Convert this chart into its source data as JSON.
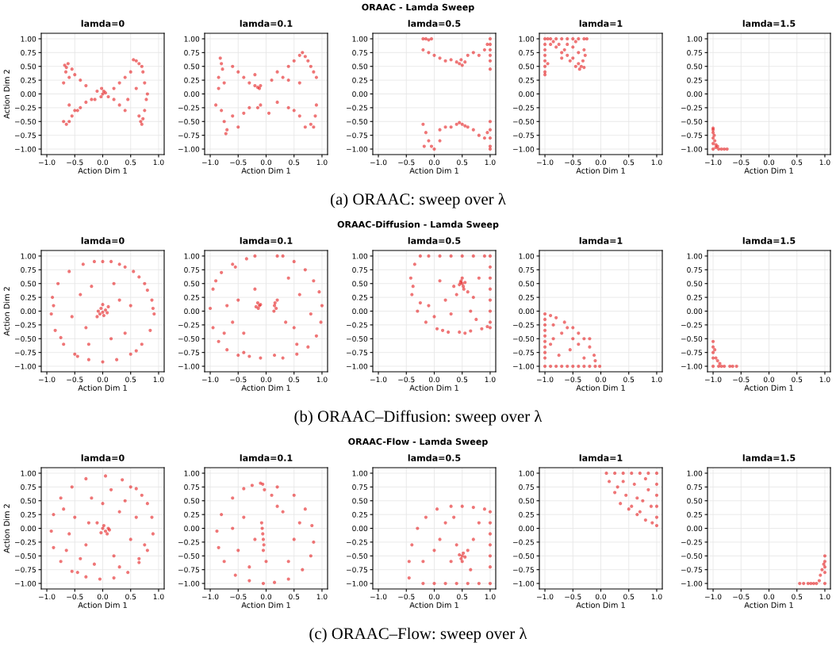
{
  "chart_data": [
    {
      "type": "scatter",
      "title": "lamda=0",
      "xlabel": "Action Dim 1",
      "ylabel": "Action Dim 2",
      "annotations": [
        "ORAAC - Lamda Sweep",
        "(a) ORAAC: sweep over λ"
      ],
      "color": "#e41a1c",
      "marker": "circle",
      "grid": true,
      "xlim": [
        -1.1,
        1.1
      ],
      "ylim": [
        -1.1,
        1.1
      ],
      "xticks": [
        {
          "value": -1,
          "label": "−1.0"
        },
        {
          "value": -0.5,
          "label": "−0.5"
        },
        {
          "value": 0,
          "label": "0.0"
        },
        {
          "value": 0.5,
          "label": "0.5"
        },
        {
          "value": 1,
          "label": "1.0"
        }
      ],
      "yticks": [
        {
          "value": -1,
          "label": "−1.00"
        },
        {
          "value": -0.75,
          "label": "−0.75"
        },
        {
          "value": -0.5,
          "label": "−0.50"
        },
        {
          "value": -0.25,
          "label": "−0.25"
        },
        {
          "value": 0,
          "label": "0.00"
        },
        {
          "value": 0.25,
          "label": "0.25"
        },
        {
          "value": 0.5,
          "label": "0.50"
        },
        {
          "value": 0.75,
          "label": "0.75"
        },
        {
          "value": 1,
          "label": "1.00"
        }
      ],
      "x": [
        -0.68,
        -0.65,
        -0.62,
        -0.66,
        -0.6,
        -0.7,
        -0.55,
        -0.5,
        -0.4,
        -0.3,
        -0.6,
        -0.5,
        -0.4,
        -0.3,
        -0.14,
        -0.7,
        -0.65,
        -0.6,
        -0.55,
        -0.45,
        -0.2,
        0.0,
        0.02,
        -0.03,
        0.05,
        -0.02,
        0.2,
        0.3,
        0.4,
        0.5,
        0.55,
        0.6,
        0.65,
        0.7,
        0.72,
        0.2,
        0.3,
        0.4,
        0.68,
        0.7,
        0.72,
        0.75,
        0.78,
        0.6,
        0.45,
        0.75,
        0.8,
        0.1,
        -0.1,
        0.65
      ],
      "values": [
        0.52,
        0.48,
        0.55,
        0.4,
        0.3,
        0.2,
        0.45,
        0.35,
        0.25,
        0.15,
        -0.2,
        -0.3,
        -0.25,
        -0.15,
        -0.1,
        -0.5,
        -0.55,
        -0.5,
        -0.4,
        -0.3,
        -0.1,
        0.0,
        0.05,
        -0.05,
        0.02,
        0.1,
        0.1,
        0.2,
        0.3,
        0.4,
        0.62,
        0.6,
        0.55,
        0.5,
        0.4,
        -0.1,
        -0.2,
        -0.3,
        -0.5,
        -0.55,
        -0.45,
        -0.3,
        -0.1,
        0.1,
        -0.1,
        0.2,
        0.0,
        -0.05,
        0.05,
        -0.4
      ]
    },
    {
      "type": "scatter",
      "title": "lamda=0.1",
      "xlabel": "Action Dim 1",
      "color": "#e41a1c",
      "marker": "circle",
      "grid": true,
      "xlim": [
        -1.1,
        1.1
      ],
      "ylim": [
        -1.1,
        1.1
      ],
      "xticks": [
        {
          "value": -1,
          "label": "−1.0"
        },
        {
          "value": -0.5,
          "label": "−0.5"
        },
        {
          "value": 0,
          "label": "0.0"
        },
        {
          "value": 0.5,
          "label": "0.5"
        },
        {
          "value": 1,
          "label": "1.0"
        }
      ],
      "yticks": [
        {
          "value": -1,
          "label": "−1.00"
        },
        {
          "value": -0.75,
          "label": "−0.75"
        },
        {
          "value": -0.5,
          "label": "−0.50"
        },
        {
          "value": -0.25,
          "label": "−0.25"
        },
        {
          "value": 0,
          "label": "0.00"
        },
        {
          "value": 0.25,
          "label": "0.25"
        },
        {
          "value": 0.5,
          "label": "0.50"
        },
        {
          "value": 0.75,
          "label": "0.75"
        },
        {
          "value": 1,
          "label": "1.00"
        }
      ],
      "x": [
        -0.82,
        -0.8,
        -0.78,
        -0.85,
        -0.75,
        -0.6,
        -0.5,
        -0.4,
        -0.3,
        -0.2,
        -0.15,
        -0.12,
        -0.1,
        0.1,
        0.2,
        0.4,
        0.5,
        0.6,
        0.65,
        0.7,
        0.8,
        0.85,
        0.9,
        0.6,
        0.4,
        -0.8,
        -0.75,
        -0.7,
        -0.72,
        -0.6,
        -0.4,
        -0.3,
        -0.15,
        -0.1,
        0.2,
        0.4,
        0.6,
        0.8,
        0.85,
        0.88,
        0.9,
        0.7,
        -0.5,
        -0.9,
        0.3,
        0.05,
        -0.2,
        0.75,
        -0.85,
        0.5
      ],
      "values": [
        0.65,
        0.55,
        0.45,
        0.3,
        0.2,
        0.5,
        0.4,
        0.3,
        0.2,
        0.15,
        0.12,
        0.1,
        0.15,
        0.25,
        0.4,
        0.5,
        0.6,
        0.7,
        0.75,
        0.68,
        0.5,
        0.4,
        0.3,
        0.2,
        0.25,
        -0.3,
        -0.5,
        -0.65,
        -0.72,
        -0.4,
        -0.35,
        -0.25,
        -0.25,
        -0.2,
        -0.15,
        -0.25,
        -0.4,
        -0.55,
        -0.6,
        -0.4,
        -0.2,
        -0.6,
        -0.6,
        -0.2,
        0.3,
        -0.35,
        0.35,
        0.6,
        0.1,
        -0.3
      ]
    },
    {
      "type": "scatter",
      "title": "lamda=0.5",
      "xlabel": "Action Dim 1",
      "color": "#e41a1c",
      "marker": "circle",
      "grid": true,
      "xlim": [
        -1.1,
        1.1
      ],
      "ylim": [
        -1.1,
        1.1
      ],
      "xticks": [
        {
          "value": -1,
          "label": "−1.0"
        },
        {
          "value": -0.5,
          "label": "−0.5"
        },
        {
          "value": 0,
          "label": "0.0"
        },
        {
          "value": 0.5,
          "label": "0.5"
        },
        {
          "value": 1,
          "label": "1.0"
        }
      ],
      "yticks": [
        {
          "value": -1,
          "label": "−1.00"
        },
        {
          "value": -0.75,
          "label": "−0.75"
        },
        {
          "value": -0.5,
          "label": "−0.50"
        },
        {
          "value": -0.25,
          "label": "−0.25"
        },
        {
          "value": 0,
          "label": "0.00"
        },
        {
          "value": 0.25,
          "label": "0.25"
        },
        {
          "value": 0.5,
          "label": "0.50"
        },
        {
          "value": 0.75,
          "label": "0.75"
        },
        {
          "value": 1,
          "label": "1.00"
        }
      ],
      "x": [
        -0.2,
        -0.15,
        -0.1,
        -0.05,
        -0.2,
        -0.1,
        0.0,
        0.1,
        0.2,
        0.3,
        0.4,
        0.45,
        0.5,
        0.55,
        0.48,
        0.6,
        0.7,
        0.8,
        0.9,
        0.95,
        1.0,
        1.0,
        1.0,
        1.0,
        1.0,
        1.0,
        1.0,
        1.0,
        1.0,
        1.0,
        1.0,
        -0.2,
        -0.15,
        -0.1,
        0.0,
        -0.05,
        0.1,
        0.2,
        0.3,
        0.4,
        0.45,
        0.5,
        0.55,
        0.6,
        0.7,
        0.8,
        0.9,
        0.95,
        0.1,
        -0.18
      ],
      "values": [
        1.0,
        1.0,
        0.98,
        1.0,
        0.8,
        0.75,
        0.7,
        0.65,
        0.6,
        0.62,
        0.58,
        0.55,
        0.52,
        0.58,
        0.62,
        0.7,
        0.75,
        0.7,
        0.8,
        0.9,
        1.0,
        0.9,
        0.8,
        0.7,
        0.6,
        0.45,
        -0.5,
        -0.65,
        -0.8,
        -0.95,
        -1.0,
        -0.55,
        -0.7,
        -0.85,
        -1.0,
        -0.95,
        -0.65,
        -0.6,
        -0.6,
        -0.55,
        -0.52,
        -0.55,
        -0.58,
        -0.6,
        -0.65,
        -0.75,
        -0.8,
        -0.7,
        -0.85,
        -0.95
      ]
    },
    {
      "type": "scatter",
      "title": "lamda=1",
      "xlabel": "Action Dim 1",
      "color": "#e41a1c",
      "marker": "circle",
      "grid": true,
      "xlim": [
        -1.1,
        1.1
      ],
      "ylim": [
        -1.1,
        1.1
      ],
      "xticks": [
        {
          "value": -1,
          "label": "−1.0"
        },
        {
          "value": -0.5,
          "label": "−0.5"
        },
        {
          "value": 0,
          "label": "0.0"
        },
        {
          "value": 0.5,
          "label": "0.5"
        },
        {
          "value": 1,
          "label": "1.0"
        }
      ],
      "yticks": [
        {
          "value": -1,
          "label": "−1.00"
        },
        {
          "value": -0.75,
          "label": "−0.75"
        },
        {
          "value": -0.5,
          "label": "−0.50"
        },
        {
          "value": -0.25,
          "label": "−0.25"
        },
        {
          "value": 0,
          "label": "0.00"
        },
        {
          "value": 0.25,
          "label": "0.25"
        },
        {
          "value": 0.5,
          "label": "0.50"
        },
        {
          "value": 0.75,
          "label": "0.75"
        },
        {
          "value": 1,
          "label": "1.00"
        }
      ],
      "x": [
        -1.0,
        -0.95,
        -0.9,
        -0.8,
        -0.7,
        -0.6,
        -0.5,
        -0.4,
        -0.3,
        -0.25,
        -1.0,
        -1.0,
        -1.0,
        -1.0,
        -1.0,
        -1.0,
        -1.0,
        -0.9,
        -0.8,
        -0.7,
        -0.6,
        -0.5,
        -0.4,
        -0.35,
        -0.3,
        -0.38,
        -0.32,
        -0.45,
        -0.55,
        -0.65,
        -0.75,
        -0.5,
        -0.3,
        -0.28,
        -0.85,
        -0.4,
        -0.6,
        -0.7,
        -0.95,
        -0.45
      ],
      "values": [
        1.0,
        1.0,
        1.0,
        1.0,
        1.0,
        1.0,
        1.0,
        1.0,
        1.0,
        1.0,
        0.9,
        0.8,
        0.7,
        0.6,
        0.5,
        0.4,
        0.35,
        0.9,
        0.85,
        0.75,
        0.7,
        0.65,
        0.55,
        0.5,
        0.48,
        0.45,
        0.6,
        0.5,
        0.6,
        0.8,
        0.9,
        0.85,
        0.8,
        0.7,
        0.95,
        0.75,
        0.9,
        0.65,
        0.55,
        0.95
      ]
    },
    {
      "type": "scatter",
      "title": "lamda=1.5",
      "xlabel": "Action Dim 1",
      "color": "#e41a1c",
      "marker": "circle",
      "grid": true,
      "xlim": [
        -1.1,
        1.1
      ],
      "ylim": [
        -1.1,
        1.1
      ],
      "xticks": [
        {
          "value": -1,
          "label": "−1.0"
        },
        {
          "value": -0.5,
          "label": "−0.5"
        },
        {
          "value": 0,
          "label": "0.0"
        },
        {
          "value": 0.5,
          "label": "0.5"
        },
        {
          "value": 1,
          "label": "1.0"
        }
      ],
      "yticks": [
        {
          "value": -1,
          "label": "−1.00"
        },
        {
          "value": -0.75,
          "label": "−0.75"
        },
        {
          "value": -0.5,
          "label": "−0.50"
        },
        {
          "value": -0.25,
          "label": "−0.25"
        },
        {
          "value": 0,
          "label": "0.00"
        },
        {
          "value": 0.25,
          "label": "0.25"
        },
        {
          "value": 0.5,
          "label": "0.50"
        },
        {
          "value": 0.75,
          "label": "0.75"
        },
        {
          "value": 1,
          "label": "1.00"
        }
      ],
      "x": [
        -1.0,
        -1.0,
        -1.0,
        -1.0,
        -1.0,
        -0.98,
        -0.97,
        -0.95,
        -0.9,
        -0.85,
        -0.8,
        -0.75,
        -0.95,
        -0.92,
        -1.0
      ],
      "values": [
        -0.62,
        -0.7,
        -0.8,
        -0.9,
        -1.0,
        -0.75,
        -0.85,
        -0.92,
        -1.0,
        -1.0,
        -1.0,
        -1.0,
        -0.97,
        -0.95,
        -0.65
      ]
    },
    {
      "type": "scatter",
      "title": "lamda=0",
      "xlabel": "Action Dim 1",
      "ylabel": "Action Dim 2",
      "annotations": [
        "ORAAC-Diffusion - Lamda Sweep",
        "(b) ORAAC–Diffusion: sweep over λ"
      ],
      "color": "#e41a1c",
      "marker": "circle",
      "grid": true,
      "xlim": [
        -1.1,
        1.1
      ],
      "ylim": [
        -1.1,
        1.1
      ],
      "xticks": [
        {
          "value": -1,
          "label": "−1.0"
        },
        {
          "value": -0.5,
          "label": "−0.5"
        },
        {
          "value": 0,
          "label": "0.0"
        },
        {
          "value": 0.5,
          "label": "0.5"
        },
        {
          "value": 1,
          "label": "1.0"
        }
      ],
      "yticks": [
        {
          "value": -1,
          "label": "−1.00"
        },
        {
          "value": -0.75,
          "label": "−0.75"
        },
        {
          "value": -0.5,
          "label": "−0.50"
        },
        {
          "value": -0.25,
          "label": "−0.25"
        },
        {
          "value": 0,
          "label": "0.00"
        },
        {
          "value": 0.25,
          "label": "0.25"
        },
        {
          "value": 0.5,
          "label": "0.50"
        },
        {
          "value": 0.75,
          "label": "0.75"
        },
        {
          "value": 1,
          "label": "1.00"
        }
      ],
      "x": [
        0.0,
        0.3,
        0.55,
        0.75,
        0.88,
        0.92,
        0.85,
        0.7,
        0.5,
        0.25,
        0.0,
        -0.25,
        -0.5,
        -0.7,
        -0.85,
        -0.92,
        -0.9,
        -0.8,
        -0.6,
        -0.35,
        -0.15,
        0.15,
        0.4,
        0.65,
        0.8,
        -0.75,
        -0.45,
        0.6,
        0.9,
        -0.88,
        0.0,
        0.05,
        -0.05,
        0.02,
        -0.03,
        0.08,
        -0.08,
        0.1,
        -0.1,
        0.0,
        0.3,
        -0.3,
        0.4,
        -0.4,
        0.2,
        -0.2,
        0.5,
        -0.55,
        0.15,
        -0.25
      ],
      "values": [
        0.9,
        0.85,
        0.72,
        0.5,
        0.2,
        -0.05,
        -0.35,
        -0.6,
        -0.78,
        -0.88,
        -0.92,
        -0.88,
        -0.78,
        -0.6,
        -0.35,
        -0.05,
        0.25,
        0.5,
        0.72,
        0.85,
        0.9,
        0.9,
        0.8,
        0.62,
        0.38,
        -0.48,
        -0.82,
        -0.72,
        0.05,
        0.1,
        -0.02,
        0.02,
        -0.05,
        -0.08,
        0.05,
        -0.03,
        0.0,
        0.08,
        -0.1,
        0.12,
        0.2,
        -0.3,
        -0.4,
        0.3,
        0.5,
        0.45,
        0.1,
        -0.1,
        -0.5,
        -0.6
      ]
    },
    {
      "type": "scatter",
      "title": "lamda=0.1",
      "xlabel": "Action Dim 1",
      "color": "#e41a1c",
      "marker": "circle",
      "grid": true,
      "xlim": [
        -1.1,
        1.1
      ],
      "ylim": [
        -1.1,
        1.1
      ],
      "xticks": [
        {
          "value": -1,
          "label": "−1.0"
        },
        {
          "value": -0.5,
          "label": "−0.5"
        },
        {
          "value": 0,
          "label": "0.0"
        },
        {
          "value": 0.5,
          "label": "0.5"
        },
        {
          "value": 1,
          "label": "1.0"
        }
      ],
      "yticks": [
        {
          "value": -1,
          "label": "−1.00"
        },
        {
          "value": -0.75,
          "label": "−0.75"
        },
        {
          "value": -0.5,
          "label": "−0.50"
        },
        {
          "value": -0.25,
          "label": "−0.25"
        },
        {
          "value": 0,
          "label": "0.00"
        },
        {
          "value": 0.25,
          "label": "0.25"
        },
        {
          "value": 0.5,
          "label": "0.50"
        },
        {
          "value": 0.75,
          "label": "0.75"
        },
        {
          "value": 1,
          "label": "1.00"
        }
      ],
      "x": [
        -0.95,
        -1.0,
        -0.95,
        -0.85,
        -0.7,
        -0.5,
        -0.3,
        -0.2,
        0.2,
        0.3,
        0.5,
        0.7,
        0.85,
        0.95,
        1.0,
        0.98,
        0.9,
        0.75,
        0.55,
        0.3,
        0.15,
        -0.1,
        -0.4,
        -0.6,
        -0.8,
        -0.9,
        -0.35,
        -0.55,
        0.55,
        -0.15,
        -0.12,
        -0.1,
        -0.18,
        -0.14,
        0.15,
        0.18,
        0.16,
        0.14,
        0.2,
        -0.5,
        -0.6,
        0.6,
        0.5,
        -0.4,
        0.4,
        -0.7,
        0.8,
        -0.2,
        0.35,
        -0.75
      ],
      "values": [
        0.4,
        0.05,
        -0.3,
        -0.55,
        -0.7,
        -0.8,
        -0.82,
        1.0,
        1.0,
        1.0,
        0.9,
        0.75,
        0.55,
        0.35,
        0.1,
        -0.2,
        -0.45,
        -0.65,
        -0.78,
        -0.85,
        -0.8,
        -0.85,
        -0.75,
        0.85,
        0.7,
        0.55,
        0.95,
        0.8,
        -0.6,
        0.15,
        0.1,
        0.12,
        0.08,
        0.05,
        0.1,
        0.05,
        0.15,
        0.0,
        0.2,
        0.2,
        -0.2,
        0.3,
        -0.3,
        -0.4,
        0.6,
        0.1,
        -0.05,
        0.4,
        -0.2,
        -0.4
      ]
    },
    {
      "type": "scatter",
      "title": "lamda=0.5",
      "xlabel": "Action Dim 1",
      "color": "#e41a1c",
      "marker": "circle",
      "grid": true,
      "xlim": [
        -1.1,
        1.1
      ],
      "ylim": [
        -1.1,
        1.1
      ],
      "xticks": [
        {
          "value": -1,
          "label": "−1.0"
        },
        {
          "value": -0.5,
          "label": "−0.5"
        },
        {
          "value": 0,
          "label": "0.0"
        },
        {
          "value": 0.5,
          "label": "0.5"
        },
        {
          "value": 1,
          "label": "1.0"
        }
      ],
      "yticks": [
        {
          "value": -1,
          "label": "−1.00"
        },
        {
          "value": -0.75,
          "label": "−0.75"
        },
        {
          "value": -0.5,
          "label": "−0.50"
        },
        {
          "value": -0.25,
          "label": "−0.25"
        },
        {
          "value": 0,
          "label": "0.00"
        },
        {
          "value": 0.25,
          "label": "0.25"
        },
        {
          "value": 0.5,
          "label": "0.50"
        },
        {
          "value": 0.75,
          "label": "0.75"
        },
        {
          "value": 1,
          "label": "1.00"
        }
      ],
      "x": [
        -0.25,
        -0.1,
        0.1,
        0.3,
        0.5,
        0.7,
        0.9,
        1.0,
        1.0,
        1.0,
        1.0,
        1.0,
        1.0,
        1.0,
        1.0,
        -0.35,
        -0.42,
        -0.4,
        -0.3,
        -0.15,
        0.05,
        0.25,
        0.45,
        0.65,
        0.85,
        0.95,
        -0.38,
        -0.25,
        0.15,
        0.55,
        0.5,
        0.48,
        0.52,
        0.55,
        0.45,
        0.5,
        0.53,
        0.47,
        0.6,
        0.4,
        0.2,
        0.7,
        0.3,
        0.8,
        0.1,
        0.65,
        -0.1,
        0.35,
        0.75,
        0.0
      ],
      "values": [
        1.0,
        1.0,
        1.0,
        1.0,
        1.0,
        1.0,
        1.0,
        1.0,
        0.8,
        0.6,
        0.4,
        0.2,
        0.0,
        -0.2,
        -0.3,
        0.85,
        0.6,
        0.3,
        0.0,
        -0.2,
        -0.32,
        -0.38,
        -0.38,
        -0.36,
        -0.32,
        -0.28,
        0.45,
        0.15,
        -0.35,
        -0.4,
        0.5,
        0.55,
        0.45,
        0.52,
        0.48,
        0.6,
        0.4,
        0.52,
        0.35,
        0.3,
        0.2,
        0.25,
        -0.05,
        0.6,
        0.55,
        0.0,
        0.1,
        0.45,
        -0.15,
        -0.1
      ]
    },
    {
      "type": "scatter",
      "title": "lamda=1",
      "xlabel": "Action Dim 1",
      "color": "#e41a1c",
      "marker": "circle",
      "grid": true,
      "xlim": [
        -1.1,
        1.1
      ],
      "ylim": [
        -1.1,
        1.1
      ],
      "xticks": [
        {
          "value": -1,
          "label": "−1.0"
        },
        {
          "value": -0.5,
          "label": "−0.5"
        },
        {
          "value": 0,
          "label": "0.0"
        },
        {
          "value": 0.5,
          "label": "0.5"
        },
        {
          "value": 1,
          "label": "1.0"
        }
      ],
      "yticks": [
        {
          "value": -1,
          "label": "−1.00"
        },
        {
          "value": -0.75,
          "label": "−0.75"
        },
        {
          "value": -0.5,
          "label": "−0.50"
        },
        {
          "value": -0.25,
          "label": "−0.25"
        },
        {
          "value": 0,
          "label": "0.00"
        },
        {
          "value": 0.25,
          "label": "0.25"
        },
        {
          "value": 0.5,
          "label": "0.50"
        },
        {
          "value": 0.75,
          "label": "0.75"
        },
        {
          "value": 1,
          "label": "1.00"
        }
      ],
      "x": [
        -1.0,
        -1.0,
        -1.0,
        -1.0,
        -1.0,
        -1.0,
        -1.0,
        -1.0,
        -1.0,
        -1.0,
        -0.9,
        -0.8,
        -0.7,
        -0.6,
        -0.5,
        -0.4,
        -0.3,
        -0.2,
        -0.1,
        -0.02,
        -0.9,
        -0.8,
        -0.65,
        -0.5,
        -0.4,
        -0.3,
        -0.2,
        -0.12,
        -0.1,
        -0.85,
        -0.7,
        -0.55,
        -0.75,
        -0.4,
        -0.6,
        -0.85,
        -0.3,
        -0.9,
        -0.5,
        -0.2
      ],
      "values": [
        -0.05,
        -0.15,
        -0.25,
        -0.35,
        -0.45,
        -0.55,
        -0.65,
        -0.75,
        -0.85,
        -1.0,
        -1.0,
        -1.0,
        -1.0,
        -1.0,
        -1.0,
        -1.0,
        -1.0,
        -1.0,
        -1.0,
        -1.0,
        -0.08,
        -0.12,
        -0.2,
        -0.3,
        -0.4,
        -0.5,
        -0.65,
        -0.8,
        -0.9,
        -0.5,
        -0.4,
        -0.7,
        -0.8,
        -0.6,
        -0.3,
        -0.25,
        -0.85,
        -0.6,
        -0.5,
        -0.5
      ]
    },
    {
      "type": "scatter",
      "title": "lamda=1.5",
      "xlabel": "Action Dim 1",
      "color": "#e41a1c",
      "marker": "circle",
      "grid": true,
      "xlim": [
        -1.1,
        1.1
      ],
      "ylim": [
        -1.1,
        1.1
      ],
      "xticks": [
        {
          "value": -1,
          "label": "−1.0"
        },
        {
          "value": -0.5,
          "label": "−0.5"
        },
        {
          "value": 0,
          "label": "0.0"
        },
        {
          "value": 0.5,
          "label": "0.5"
        },
        {
          "value": 1,
          "label": "1.0"
        }
      ],
      "yticks": [
        {
          "value": -1,
          "label": "−1.00"
        },
        {
          "value": -0.75,
          "label": "−0.75"
        },
        {
          "value": -0.5,
          "label": "−0.50"
        },
        {
          "value": -0.25,
          "label": "−0.25"
        },
        {
          "value": 0,
          "label": "0.00"
        },
        {
          "value": 0.25,
          "label": "0.25"
        },
        {
          "value": 0.5,
          "label": "0.50"
        },
        {
          "value": 0.75,
          "label": "0.75"
        },
        {
          "value": 1,
          "label": "1.00"
        }
      ],
      "x": [
        -1.0,
        -1.0,
        -1.0,
        -1.0,
        -1.0,
        -0.97,
        -0.95,
        -0.92,
        -0.88,
        -0.85,
        -0.8,
        -0.7,
        -0.65,
        -0.58,
        -0.9
      ],
      "values": [
        -0.55,
        -0.65,
        -0.75,
        -0.85,
        -1.0,
        -0.7,
        -0.85,
        -0.9,
        -0.95,
        -1.0,
        -1.0,
        -1.0,
        -1.0,
        -1.0,
        -1.0
      ]
    },
    {
      "type": "scatter",
      "title": "lamda=0",
      "xlabel": "Action Dim 1",
      "ylabel": "Action Dim 2",
      "annotations": [
        "ORAAC-Flow - Lamda Sweep",
        "(c) ORAAC–Flow: sweep over λ"
      ],
      "color": "#e41a1c",
      "marker": "circle",
      "grid": true,
      "xlim": [
        -1.1,
        1.1
      ],
      "ylim": [
        -1.1,
        1.1
      ],
      "xticks": [
        {
          "value": -1,
          "label": "−1.0"
        },
        {
          "value": -0.5,
          "label": "−0.5"
        },
        {
          "value": 0,
          "label": "0.0"
        },
        {
          "value": 0.5,
          "label": "0.5"
        },
        {
          "value": 1,
          "label": "1.0"
        }
      ],
      "yticks": [
        {
          "value": -1,
          "label": "−1.00"
        },
        {
          "value": -0.75,
          "label": "−0.75"
        },
        {
          "value": -0.5,
          "label": "−0.50"
        },
        {
          "value": -0.25,
          "label": "−0.25"
        },
        {
          "value": 0,
          "label": "0.00"
        },
        {
          "value": 0.25,
          "label": "0.25"
        },
        {
          "value": 0.5,
          "label": "0.50"
        },
        {
          "value": 0.75,
          "label": "0.75"
        },
        {
          "value": 1,
          "label": "1.00"
        }
      ],
      "x": [
        0.05,
        0.35,
        0.6,
        0.8,
        0.88,
        0.9,
        0.8,
        0.65,
        0.45,
        0.2,
        -0.05,
        -0.3,
        -0.55,
        -0.75,
        -0.88,
        -0.92,
        -0.88,
        -0.75,
        -0.55,
        -0.3,
        0.05,
        0.0,
        0.08,
        0.1,
        -0.03,
        0.02,
        0.12,
        -0.1,
        0.3,
        -0.3,
        0.5,
        -0.5,
        0.4,
        -0.4,
        0.6,
        -0.6,
        0.2,
        -0.2,
        0.65,
        -0.15,
        0.7,
        -0.7,
        0.5,
        0.3,
        -0.45,
        0.15,
        -0.65,
        0.75,
        0.0,
        -0.25
      ],
      "values": [
        0.95,
        0.88,
        0.72,
        0.45,
        0.2,
        -0.1,
        -0.4,
        -0.62,
        -0.8,
        -0.9,
        -0.92,
        -0.88,
        -0.78,
        -0.6,
        -0.35,
        -0.05,
        0.25,
        0.55,
        0.75,
        0.9,
        -0.05,
        0.0,
        -0.1,
        0.0,
        -0.08,
        0.05,
        -0.03,
        0.1,
        0.3,
        -0.3,
        -0.2,
        0.2,
        0.5,
        -0.55,
        0.2,
        -0.1,
        -0.5,
        0.55,
        -0.55,
        -0.65,
        0.6,
        0.35,
        0.75,
        -0.7,
        -0.8,
        0.7,
        -0.4,
        -0.3,
        0.45,
        0.1
      ]
    },
    {
      "type": "scatter",
      "title": "lamda=0.1",
      "xlabel": "Action Dim 1",
      "color": "#e41a1c",
      "marker": "circle",
      "grid": true,
      "xlim": [
        -1.1,
        1.1
      ],
      "ylim": [
        -1.1,
        1.1
      ],
      "xticks": [
        {
          "value": -1,
          "label": "−1.0"
        },
        {
          "value": -0.5,
          "label": "−0.5"
        },
        {
          "value": 0,
          "label": "0.0"
        },
        {
          "value": 0.5,
          "label": "0.5"
        },
        {
          "value": 1,
          "label": "1.0"
        }
      ],
      "yticks": [
        {
          "value": -1,
          "label": "−1.00"
        },
        {
          "value": -0.75,
          "label": "−0.75"
        },
        {
          "value": -0.5,
          "label": "−0.50"
        },
        {
          "value": -0.25,
          "label": "−0.25"
        },
        {
          "value": 0,
          "label": "0.00"
        },
        {
          "value": 0.25,
          "label": "0.25"
        },
        {
          "value": 0.5,
          "label": "0.50"
        },
        {
          "value": 0.75,
          "label": "0.75"
        },
        {
          "value": 1,
          "label": "1.00"
        }
      ],
      "x": [
        -0.1,
        0.2,
        0.5,
        0.7,
        0.82,
        0.85,
        0.8,
        0.65,
        0.4,
        0.15,
        -0.05,
        -0.3,
        -0.55,
        -0.75,
        -0.85,
        -0.88,
        -0.8,
        -0.6,
        -0.4,
        -0.25,
        -0.08,
        -0.07,
        -0.06,
        -0.05,
        -0.04,
        -0.05,
        -0.06,
        -0.03,
        0.3,
        -0.4,
        0.5,
        -0.5,
        0.4,
        -0.3,
        0.2,
        -0.2,
        0.6,
        -0.6,
        0.0,
        0.1
      ],
      "values": [
        0.82,
        0.75,
        0.6,
        0.35,
        0.05,
        -0.25,
        -0.5,
        -0.75,
        -0.92,
        -0.98,
        -1.0,
        -0.95,
        -0.85,
        -0.6,
        -0.35,
        -0.05,
        0.25,
        0.55,
        0.72,
        0.78,
        0.1,
        0.0,
        -0.1,
        -0.2,
        -0.3,
        -0.4,
        0.8,
        0.7,
        0.3,
        0.2,
        -0.2,
        -0.4,
        -0.6,
        -0.7,
        0.4,
        -0.2,
        0.1,
        0.0,
        -0.6,
        0.6
      ]
    },
    {
      "type": "scatter",
      "title": "lamda=0.5",
      "xlabel": "Action Dim 1",
      "color": "#e41a1c",
      "marker": "circle",
      "grid": true,
      "xlim": [
        -1.1,
        1.1
      ],
      "ylim": [
        -1.1,
        1.1
      ],
      "xticks": [
        {
          "value": -1,
          "label": "−1.0"
        },
        {
          "value": -0.5,
          "label": "−0.5"
        },
        {
          "value": 0,
          "label": "0.0"
        },
        {
          "value": 0.5,
          "label": "0.5"
        },
        {
          "value": 1,
          "label": "1.0"
        }
      ],
      "yticks": [
        {
          "value": -1,
          "label": "−1.00"
        },
        {
          "value": -0.75,
          "label": "−0.75"
        },
        {
          "value": -0.5,
          "label": "−0.50"
        },
        {
          "value": -0.25,
          "label": "−0.25"
        },
        {
          "value": 0,
          "label": "0.00"
        },
        {
          "value": 0.25,
          "label": "0.25"
        },
        {
          "value": 0.5,
          "label": "0.50"
        },
        {
          "value": 0.75,
          "label": "0.75"
        },
        {
          "value": 1,
          "label": "1.00"
        }
      ],
      "x": [
        1.0,
        1.0,
        1.0,
        1.0,
        1.0,
        1.0,
        1.0,
        0.8,
        0.6,
        0.4,
        0.2,
        0.0,
        -0.2,
        -0.45,
        -0.45,
        -0.4,
        -0.3,
        -0.15,
        0.05,
        0.3,
        0.5,
        0.7,
        0.9,
        0.5,
        0.48,
        0.52,
        0.55,
        0.45,
        0.5,
        0.6,
        0.4,
        0.3,
        0.2,
        0.0,
        0.7,
        0.8,
        -0.2,
        0.1,
        0.65,
        0.35
      ],
      "values": [
        0.3,
        0.1,
        -0.1,
        -0.3,
        -0.5,
        -0.7,
        -1.0,
        -1.0,
        -1.0,
        -1.0,
        -1.0,
        -1.0,
        -1.0,
        -0.9,
        -0.6,
        -0.3,
        0.0,
        0.2,
        0.35,
        0.4,
        0.4,
        0.38,
        0.35,
        -0.5,
        -0.55,
        -0.45,
        -0.52,
        -0.48,
        -0.6,
        -0.4,
        -0.3,
        -0.6,
        0.1,
        -0.4,
        -0.2,
        0.1,
        -0.6,
        -0.2,
        -0.75,
        0.2
      ]
    },
    {
      "type": "scatter",
      "title": "lamda=1",
      "xlabel": "Action Dim 1",
      "color": "#e41a1c",
      "marker": "circle",
      "grid": true,
      "xlim": [
        -1.1,
        1.1
      ],
      "ylim": [
        -1.1,
        1.1
      ],
      "xticks": [
        {
          "value": -1,
          "label": "−1.0"
        },
        {
          "value": -0.5,
          "label": "−0.5"
        },
        {
          "value": 0,
          "label": "0.0"
        },
        {
          "value": 0.5,
          "label": "0.5"
        },
        {
          "value": 1,
          "label": "1.0"
        }
      ],
      "yticks": [
        {
          "value": -1,
          "label": "−1.00"
        },
        {
          "value": -0.75,
          "label": "−0.75"
        },
        {
          "value": -0.5,
          "label": "−0.50"
        },
        {
          "value": -0.25,
          "label": "−0.25"
        },
        {
          "value": 0,
          "label": "0.00"
        },
        {
          "value": 0.25,
          "label": "0.25"
        },
        {
          "value": 0.5,
          "label": "0.50"
        },
        {
          "value": 0.75,
          "label": "0.75"
        },
        {
          "value": 1,
          "label": "1.00"
        }
      ],
      "x": [
        0.1,
        0.25,
        0.4,
        0.55,
        0.7,
        0.85,
        1.0,
        1.0,
        1.0,
        1.0,
        1.0,
        1.0,
        0.15,
        0.25,
        0.35,
        0.5,
        0.65,
        0.8,
        0.92,
        0.3,
        0.45,
        0.6,
        0.75,
        0.85,
        0.55,
        0.7,
        0.4,
        0.9,
        0.65,
        0.8
      ],
      "values": [
        1.0,
        1.0,
        1.0,
        1.0,
        1.0,
        1.0,
        1.0,
        0.8,
        0.6,
        0.4,
        0.2,
        0.05,
        0.85,
        0.65,
        0.45,
        0.35,
        0.25,
        0.15,
        0.1,
        0.75,
        0.6,
        0.8,
        0.5,
        0.7,
        0.4,
        0.3,
        0.85,
        0.4,
        0.55,
        0.9
      ]
    },
    {
      "type": "scatter",
      "title": "lamda=1.5",
      "xlabel": "Action Dim 1",
      "color": "#e41a1c",
      "marker": "circle",
      "grid": true,
      "xlim": [
        -1.1,
        1.1
      ],
      "ylim": [
        -1.1,
        1.1
      ],
      "xticks": [
        {
          "value": -1,
          "label": "−1.0"
        },
        {
          "value": -0.5,
          "label": "−0.5"
        },
        {
          "value": 0,
          "label": "0.0"
        },
        {
          "value": 0.5,
          "label": "0.5"
        },
        {
          "value": 1,
          "label": "1.0"
        }
      ],
      "yticks": [
        {
          "value": -1,
          "label": "−1.00"
        },
        {
          "value": -0.75,
          "label": "−0.75"
        },
        {
          "value": -0.5,
          "label": "−0.50"
        },
        {
          "value": -0.25,
          "label": "−0.25"
        },
        {
          "value": 0,
          "label": "0.00"
        },
        {
          "value": 0.25,
          "label": "0.25"
        },
        {
          "value": 0.5,
          "label": "0.50"
        },
        {
          "value": 0.75,
          "label": "0.75"
        },
        {
          "value": 1,
          "label": "1.00"
        }
      ],
      "x": [
        1.0,
        1.0,
        1.0,
        1.0,
        1.0,
        0.98,
        0.95,
        0.92,
        0.9,
        0.85,
        0.8,
        0.75,
        0.7,
        0.62,
        0.55
      ],
      "values": [
        -0.5,
        -0.6,
        -0.7,
        -0.8,
        -1.0,
        -0.65,
        -0.75,
        -0.85,
        -0.95,
        -1.0,
        -1.0,
        -1.0,
        -1.0,
        -1.0,
        -1.0
      ]
    }
  ]
}
